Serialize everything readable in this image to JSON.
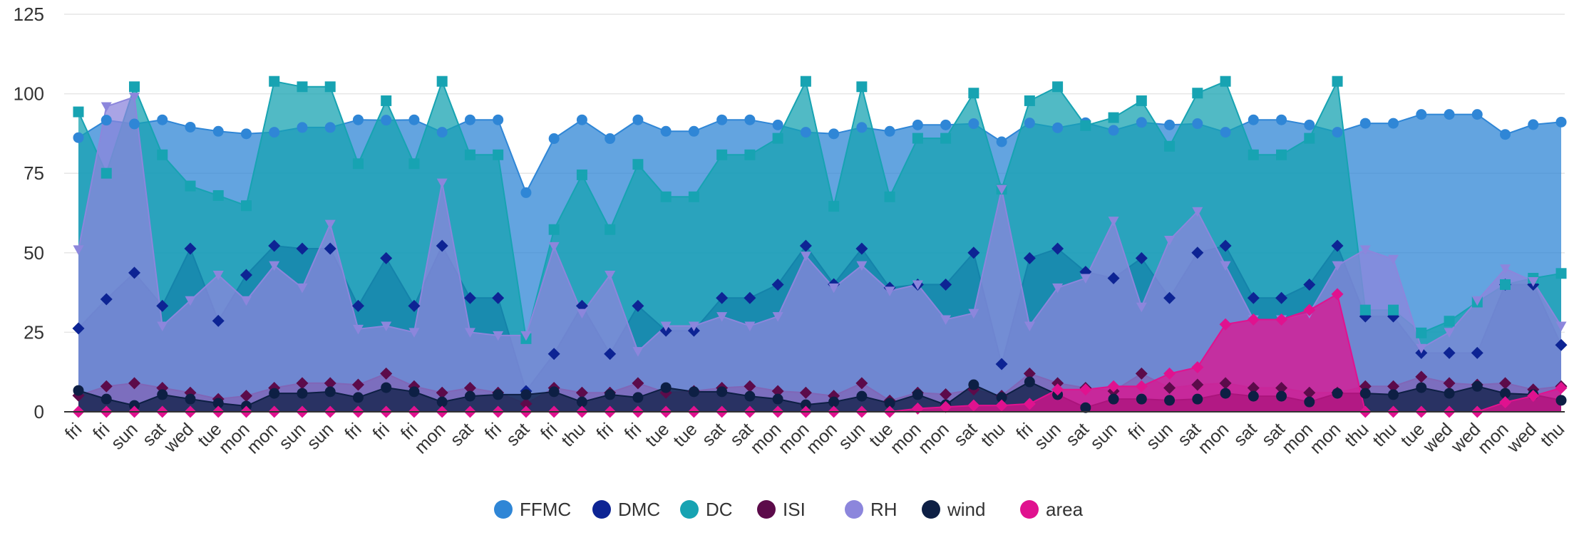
{
  "chart_data": {
    "type": "area",
    "title": "",
    "xlabel": "",
    "ylabel": "",
    "ylim": [
      0,
      125
    ],
    "yticks": [
      0,
      25,
      50,
      75,
      100,
      125
    ],
    "grid": true,
    "legend_position": "bottom",
    "categories": [
      "fri",
      "fri",
      "sun",
      "sat",
      "wed",
      "tue",
      "mon",
      "mon",
      "sun",
      "sun",
      "fri",
      "fri",
      "fri",
      "mon",
      "sat",
      "fri",
      "sat",
      "fri",
      "thu",
      "fri",
      "fri",
      "tue",
      "tue",
      "sat",
      "sat",
      "mon",
      "mon",
      "mon",
      "sun",
      "tue",
      "mon",
      "mon",
      "sat",
      "thu",
      "fri",
      "sun",
      "sat",
      "sun",
      "fri",
      "sun",
      "sat",
      "mon",
      "sat",
      "sat",
      "mon",
      "mon",
      "thu",
      "thu",
      "tue",
      "wed",
      "wed",
      "mon",
      "wed",
      "thu"
    ],
    "series": [
      {
        "name": "FFMC",
        "color": "#2f86d6",
        "fill": "#2f86d6",
        "marker": "circle",
        "values": [
          86.2,
          91.7,
          90.5,
          91.8,
          89.5,
          88.2,
          87.4,
          87.9,
          89.4,
          89.4,
          91.8,
          91.7,
          91.8,
          87.9,
          91.8,
          91.8,
          68.9,
          85.9,
          91.8,
          85.9,
          91.8,
          88.2,
          88.2,
          91.8,
          91.8,
          90.2,
          87.9,
          87.4,
          89.4,
          88.2,
          90.2,
          90.2,
          90.6,
          84.9,
          90.8,
          89.3,
          90.9,
          88.5,
          91.0,
          90.2,
          90.6,
          87.9,
          91.8,
          91.8,
          90.2,
          87.9,
          90.7,
          90.7,
          93.5,
          93.5,
          93.5,
          87.2,
          90.3,
          91.1
        ]
      },
      {
        "name": "DMC",
        "color": "#0d2494",
        "fill": "#0d2494",
        "marker": "diamond",
        "values": [
          26.2,
          35.4,
          43.7,
          33.3,
          51.3,
          28.6,
          43.0,
          52.2,
          51.3,
          51.3,
          33.3,
          48.3,
          33.3,
          52.2,
          35.8,
          35.8,
          6.5,
          18.2,
          33.3,
          18.2,
          33.3,
          25.5,
          25.5,
          35.8,
          35.8,
          40.0,
          52.2,
          40.1,
          51.3,
          39.0,
          40.0,
          40.0,
          50.0,
          15.0,
          48.3,
          51.3,
          44.0,
          42.0,
          48.3,
          35.8,
          50.0,
          52.2,
          35.8,
          35.8,
          40.0,
          52.2,
          30.0,
          30.0,
          18.5,
          18.5,
          18.5,
          40.0,
          40.0,
          21.0
        ]
      },
      {
        "name": "DC",
        "color": "#17a3b2",
        "fill": "#17a3b2",
        "marker": "square",
        "values": [
          94.3,
          75.0,
          102.2,
          80.8,
          71.0,
          68.0,
          64.8,
          103.9,
          102.2,
          102.2,
          78.0,
          97.8,
          78.0,
          103.9,
          80.8,
          80.8,
          23.0,
          57.3,
          74.5,
          57.3,
          77.8,
          67.6,
          67.6,
          80.8,
          80.8,
          86.0,
          103.9,
          64.6,
          102.2,
          67.6,
          86.0,
          86.0,
          100.2,
          70.0,
          97.8,
          102.2,
          90.0,
          92.5,
          97.8,
          83.5,
          100.2,
          103.9,
          80.8,
          80.8,
          86.0,
          103.9,
          32.0,
          32.0,
          24.8,
          28.5,
          34.5,
          40.0,
          42.0,
          43.5
        ]
      },
      {
        "name": "ISI",
        "color": "#5c0b4a",
        "fill": "#5c0b4a",
        "marker": "diamond",
        "values": [
          5.1,
          8.0,
          9.0,
          7.5,
          6.0,
          4.0,
          5.0,
          7.5,
          9.0,
          9.0,
          8.5,
          12.0,
          8.0,
          6.0,
          7.5,
          6.0,
          2.5,
          7.5,
          6.0,
          6.0,
          9.0,
          6.0,
          6.5,
          7.5,
          8.0,
          6.5,
          6.0,
          5.0,
          9.0,
          3.5,
          6.0,
          5.5,
          7.0,
          5.0,
          12.0,
          9.0,
          7.5,
          6.5,
          12.0,
          7.5,
          8.5,
          9.0,
          7.5,
          7.5,
          6.0,
          6.0,
          8.0,
          8.0,
          11.0,
          9.0,
          8.5,
          9.0,
          7.0,
          8.0
        ]
      },
      {
        "name": "RH",
        "color": "#8c86dc",
        "fill": "#8c86dc",
        "marker": "triangle-down",
        "values": [
          51,
          96,
          99,
          27,
          35,
          43,
          35,
          46,
          39,
          59,
          26,
          27,
          25,
          72,
          25,
          24,
          24,
          52,
          31,
          43,
          19,
          27,
          27,
          30,
          27,
          30,
          49,
          39,
          46,
          38,
          40,
          29,
          31,
          70,
          27,
          39,
          42,
          60,
          33,
          54,
          63,
          46,
          29,
          29,
          31,
          46,
          51,
          48,
          20,
          25,
          35,
          45,
          41,
          27
        ]
      },
      {
        "name": "wind",
        "color": "#0d1f44",
        "fill": "#0d1f44",
        "marker": "circle",
        "values": [
          6.7,
          4.0,
          2.0,
          5.4,
          4.0,
          2.7,
          1.8,
          5.8,
          5.8,
          6.3,
          4.5,
          7.6,
          6.3,
          3.1,
          4.9,
          5.4,
          5.4,
          6.3,
          3.1,
          5.4,
          4.5,
          7.6,
          6.3,
          6.3,
          4.9,
          4.0,
          2.2,
          3.1,
          4.9,
          2.7,
          5.4,
          2.2,
          8.5,
          4.5,
          9.4,
          5.4,
          1.3,
          4.0,
          4.0,
          3.6,
          4.0,
          5.8,
          4.9,
          4.9,
          3.1,
          5.8,
          5.8,
          5.4,
          7.6,
          5.8,
          8.0,
          5.8,
          5.4,
          3.6
        ]
      },
      {
        "name": "area",
        "color": "#e0128f",
        "fill": "#e0128f",
        "marker": "diamond",
        "values": [
          0,
          0,
          0,
          0,
          0,
          0,
          0,
          0,
          0,
          0,
          0,
          0,
          0,
          0,
          0,
          0,
          0,
          0,
          0,
          0,
          0,
          0,
          0,
          0,
          0,
          0,
          0,
          0,
          0,
          0,
          1.0,
          1.5,
          2.0,
          2.0,
          2.5,
          7.0,
          7.0,
          8.0,
          8.0,
          12.0,
          14.0,
          27.5,
          29.0,
          29.0,
          32.0,
          37.0,
          0,
          0,
          0,
          0,
          0,
          3.0,
          5.0,
          7.5
        ]
      }
    ]
  }
}
